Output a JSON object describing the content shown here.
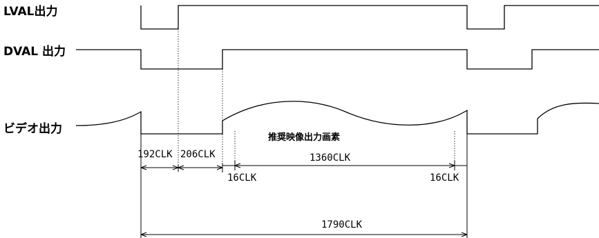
{
  "signals": {
    "lval": "LVAL出力",
    "dval": "DVAL 出力",
    "video": "ビデオ出力"
  },
  "annotations": {
    "recommended_pixels": "推奨映像出力画素"
  },
  "timing": {
    "t1": "192CLK",
    "t2": "206CLK",
    "t3": "1360CLK",
    "t4_left": "16CLK",
    "t4_right": "16CLK",
    "total": "1790CLK"
  }
}
